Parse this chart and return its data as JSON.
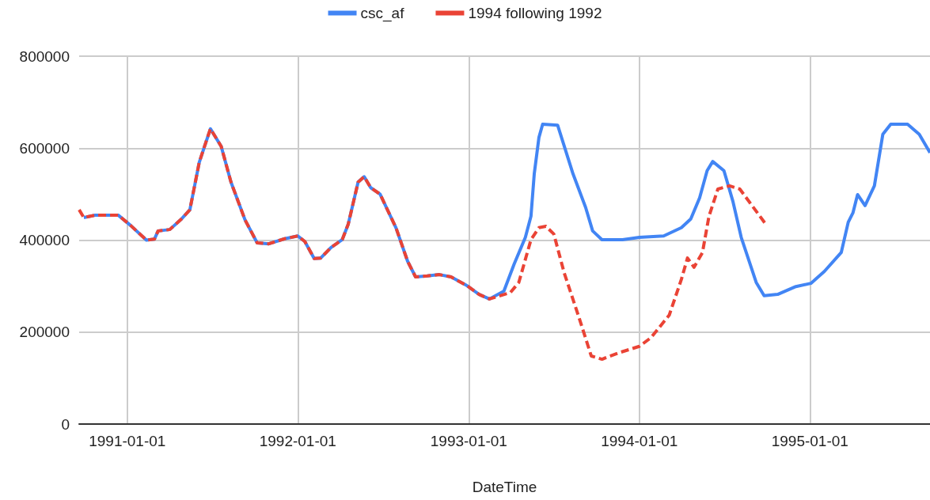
{
  "chart_data": {
    "type": "line",
    "xlabel": "DateTime",
    "legend": "top",
    "grid": true,
    "marker": "none",
    "xlim": [
      "1990-09-20",
      "1995-09-15"
    ],
    "xticks": [
      "1991-01-01",
      "1992-01-01",
      "1993-01-01",
      "1994-01-01",
      "1995-01-01"
    ],
    "ylim": [
      0,
      800000
    ],
    "yticks": [
      0,
      200000,
      400000,
      600000,
      800000
    ],
    "series": [
      {
        "name": "csc_af",
        "color": "#4285f4",
        "line_style": "solid",
        "x": [
          "1990-09-30",
          "1990-10-23",
          "1990-12-13",
          "1991-01-08",
          "1991-02-11",
          "1991-02-28",
          "1991-03-08",
          "1991-04-02",
          "1991-04-28",
          "1991-05-15",
          "1991-06-04",
          "1991-06-18",
          "1991-06-28",
          "1991-07-21",
          "1991-08-11",
          "1991-09-10",
          "1991-10-06",
          "1991-10-31",
          "1991-12-04",
          "1992-01-01",
          "1992-01-16",
          "1992-02-05",
          "1992-02-19",
          "1992-03-12",
          "1992-04-05",
          "1992-04-18",
          "1992-05-09",
          "1992-05-22",
          "1992-06-05",
          "1992-06-25",
          "1992-07-29",
          "1992-08-23",
          "1992-09-09",
          "1992-10-04",
          "1992-10-30",
          "1992-11-24",
          "1992-12-28",
          "1993-01-23",
          "1993-02-14",
          "1993-03-17",
          "1993-04-08",
          "1993-05-02",
          "1993-05-14",
          "1993-05-21",
          "1993-05-31",
          "1993-06-08",
          "1993-07-10",
          "1993-08-12",
          "1993-09-08",
          "1993-09-23",
          "1993-10-13",
          "1993-11-26",
          "1994-01-01",
          "1994-02-22",
          "1994-04-01",
          "1994-04-21",
          "1994-05-10",
          "1994-05-26",
          "1994-06-07",
          "1994-07-01",
          "1994-07-20",
          "1994-08-07",
          "1994-09-08",
          "1994-09-25",
          "1994-10-24",
          "1994-12-02",
          "1995-01-03",
          "1995-02-01",
          "1995-03-09",
          "1995-03-24",
          "1995-04-03",
          "1995-04-13",
          "1995-04-29",
          "1995-05-19",
          "1995-06-06",
          "1995-06-23",
          "1995-07-29",
          "1995-08-23",
          "1995-09-15"
        ],
        "values": [
          449000,
          454000,
          454000,
          432000,
          400000,
          402000,
          420000,
          423000,
          447000,
          466000,
          569000,
          612000,
          642000,
          604000,
          526000,
          444000,
          394000,
          392000,
          403000,
          409000,
          397000,
          360000,
          361000,
          384000,
          401000,
          435000,
          526000,
          538000,
          514000,
          500000,
          427000,
          354000,
          320000,
          322000,
          325000,
          320000,
          301000,
          282000,
          272000,
          289000,
          348000,
          406000,
          452000,
          544000,
          623000,
          652000,
          650000,
          544000,
          471000,
          420000,
          401000,
          401000,
          406000,
          409000,
          427000,
          446000,
          492000,
          551000,
          571000,
          551000,
          485000,
          406000,
          308000,
          279000,
          282000,
          299000,
          306000,
          332000,
          373000,
          439000,
          459000,
          499000,
          475000,
          518000,
          630000,
          652000,
          652000,
          630000,
          590000
        ]
      },
      {
        "name": "1994 following 1992",
        "color": "#ea4335",
        "line_style": "dashed",
        "x": [
          "1990-09-20",
          "1990-09-30",
          "1990-10-23",
          "1990-12-13",
          "1991-01-08",
          "1991-02-11",
          "1991-02-28",
          "1991-03-08",
          "1991-04-02",
          "1991-04-28",
          "1991-05-15",
          "1991-06-04",
          "1991-06-18",
          "1991-06-28",
          "1991-07-21",
          "1991-08-11",
          "1991-09-10",
          "1991-10-06",
          "1991-10-31",
          "1991-12-04",
          "1992-01-01",
          "1992-01-16",
          "1992-02-05",
          "1992-02-19",
          "1992-03-12",
          "1992-04-05",
          "1992-04-18",
          "1992-05-09",
          "1992-05-22",
          "1992-06-05",
          "1992-06-25",
          "1992-07-29",
          "1992-08-23",
          "1992-09-09",
          "1992-10-04",
          "1992-10-30",
          "1992-11-24",
          "1992-12-28",
          "1993-01-23",
          "1993-02-14",
          "1993-03-31",
          "1993-04-18",
          "1993-05-14",
          "1993-05-31",
          "1993-06-15",
          "1993-07-02",
          "1993-07-24",
          "1993-08-25",
          "1993-09-20",
          "1993-10-13",
          "1993-11-18",
          "1994-01-01",
          "1994-01-26",
          "1994-03-06",
          "1994-04-01",
          "1994-04-14",
          "1994-04-28",
          "1994-05-16",
          "1994-05-30",
          "1994-06-18",
          "1994-07-13",
          "1994-08-04",
          "1994-08-28",
          "1994-09-29"
        ],
        "values": [
          466000,
          449000,
          454000,
          454000,
          432000,
          400000,
          402000,
          420000,
          423000,
          447000,
          466000,
          569000,
          612000,
          642000,
          604000,
          526000,
          444000,
          394000,
          392000,
          403000,
          409000,
          397000,
          360000,
          361000,
          384000,
          401000,
          435000,
          526000,
          538000,
          514000,
          500000,
          427000,
          354000,
          320000,
          322000,
          325000,
          320000,
          301000,
          282000,
          272000,
          286000,
          308000,
          401000,
          427000,
          430000,
          413000,
          329000,
          231000,
          148000,
          141000,
          155000,
          169000,
          188000,
          237000,
          315000,
          361000,
          341000,
          373000,
          452000,
          511000,
          518000,
          511000,
          478000,
          434000
        ]
      }
    ]
  }
}
